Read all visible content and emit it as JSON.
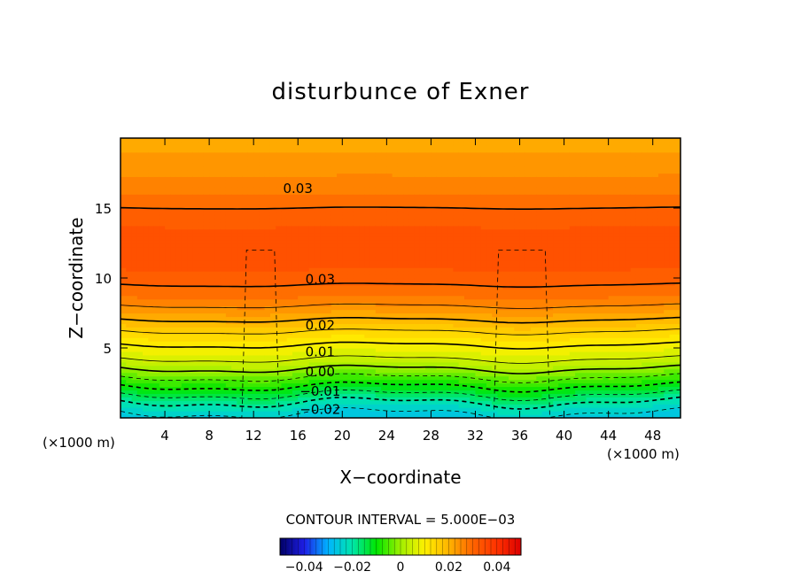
{
  "chart_data": {
    "type": "heatmap",
    "title": "disturbunce of Exner",
    "xlabel": "X−coordinate",
    "ylabel": "Z−coordinate",
    "x_unit_left": "(×1000 m)",
    "x_unit_right": "(×1000 m)",
    "xlim": [
      0,
      50.5
    ],
    "ylim": [
      0,
      20
    ],
    "x_ticks": [
      4,
      8,
      12,
      16,
      20,
      24,
      28,
      32,
      36,
      40,
      44,
      48
    ],
    "y_ticks": [
      5,
      10,
      15
    ],
    "contour_interval_label": "CONTOUR INTERVAL = 5.000E−03",
    "contour_interval": 0.005,
    "value_range": [
      -0.05,
      0.05
    ],
    "colorbar_ticks": [
      {
        "value": -0.04,
        "label": "−0.04"
      },
      {
        "value": -0.02,
        "label": "−0.02"
      },
      {
        "value": 0,
        "label": "0"
      },
      {
        "value": 0.02,
        "label": "0.02"
      },
      {
        "value": 0.04,
        "label": "0.04"
      }
    ],
    "colormap": [
      "#000064",
      "#1e1ee6",
      "#00b4ff",
      "#00e6aa",
      "#00e600",
      "#a0f000",
      "#fff000",
      "#ffb400",
      "#ff6400",
      "#ff3200",
      "#dc0000"
    ],
    "profile": {
      "z": [
        0,
        1,
        2,
        3,
        4,
        5,
        6,
        7,
        8,
        9,
        10,
        11,
        12,
        13,
        14,
        15,
        16,
        17,
        18,
        19,
        20
      ],
      "values": [
        -0.027,
        -0.021,
        -0.012,
        -0.004,
        0.004,
        0.009,
        0.014,
        0.02,
        0.025,
        0.029,
        0.031,
        0.0335,
        0.0342,
        0.0335,
        0.032,
        0.03,
        0.0275,
        0.0255,
        0.024,
        0.0225,
        0.021
      ]
    },
    "contour_labels": [
      {
        "x": 16,
        "y": 16.4,
        "text": "0.03"
      },
      {
        "x": 18,
        "y": 9.9,
        "text": "0.03"
      },
      {
        "x": 18,
        "y": 6.6,
        "text": "0.02"
      },
      {
        "x": 18,
        "y": 4.7,
        "text": "0.01"
      },
      {
        "x": 18,
        "y": 3.3,
        "text": "0.00"
      },
      {
        "x": 18,
        "y": 1.9,
        "text": "−0.01"
      },
      {
        "x": 18,
        "y": 0.6,
        "text": "−0.02"
      }
    ]
  }
}
